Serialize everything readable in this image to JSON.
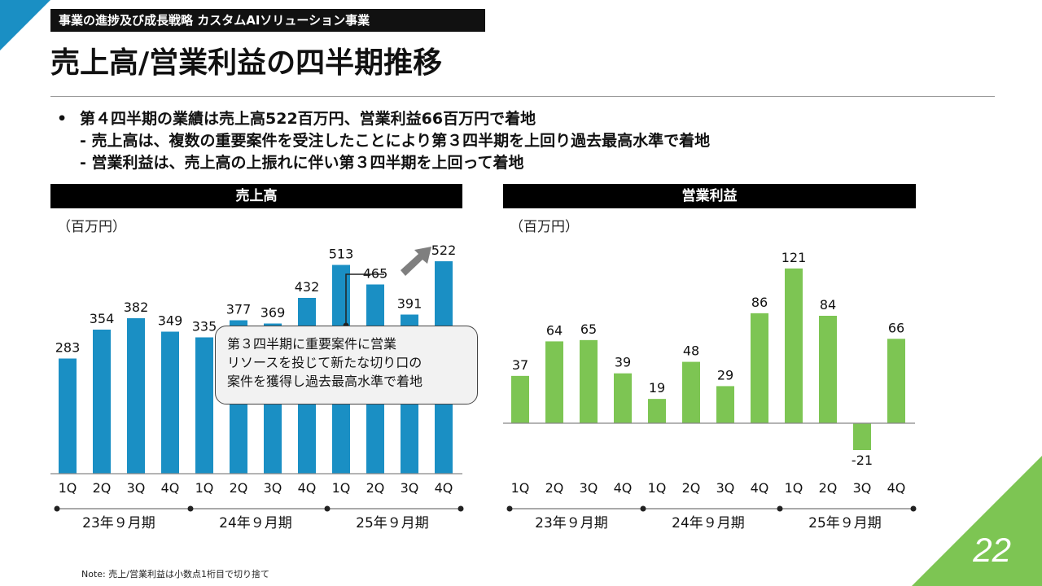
{
  "header": {
    "section_tag": "事業の進捗及び成長戦略 カスタムAIソリューション事業",
    "title": "売上高/営業利益の四半期推移"
  },
  "bullets": {
    "marker": "•",
    "main": "第４四半期の業績は売上高522百万円、営業利益66百万円で着地",
    "sub1": "- 売上高は、複数の重要案件を受注したことにより第３四半期を上回り過去最高水準で着地",
    "sub2": "- 営業利益は、売上高の上振れに伴い第３四半期を上回って着地"
  },
  "callout": {
    "line1": "第３四半期に重要案件に営業",
    "line2": "リソースを投じて新たな切り口の",
    "line3": "案件を獲得し過去最高水準で着地"
  },
  "note": "Note: 売上/営業利益は小数点1桁目で切り捨て",
  "page_number": "22",
  "colors": {
    "revenue_bar": "#1a8fc4",
    "profit_bar": "#7dc553",
    "header_bg": "#000000",
    "arrow": "#7f7f7f"
  },
  "chart_data": [
    {
      "type": "bar",
      "title": "売上高",
      "unit_label": "（百万円）",
      "categories": [
        "1Q",
        "2Q",
        "3Q",
        "4Q",
        "1Q",
        "2Q",
        "3Q",
        "4Q",
        "1Q",
        "2Q",
        "3Q",
        "4Q"
      ],
      "groups": [
        "23年９月期",
        "24年９月期",
        "25年９月期"
      ],
      "values": [
        283,
        354,
        382,
        349,
        335,
        377,
        369,
        432,
        513,
        465,
        391,
        522
      ],
      "ylim": [
        0,
        560
      ],
      "grid": false
    },
    {
      "type": "bar",
      "title": "営業利益",
      "unit_label": "（百万円）",
      "categories": [
        "1Q",
        "2Q",
        "3Q",
        "4Q",
        "1Q",
        "2Q",
        "3Q",
        "4Q",
        "1Q",
        "2Q",
        "3Q",
        "4Q"
      ],
      "groups": [
        "23年９月期",
        "24年９月期",
        "25年９月期"
      ],
      "values": [
        37,
        64,
        65,
        39,
        19,
        48,
        29,
        86,
        121,
        84,
        -21,
        66
      ],
      "ylim": [
        -30,
        140
      ],
      "grid": false
    }
  ]
}
